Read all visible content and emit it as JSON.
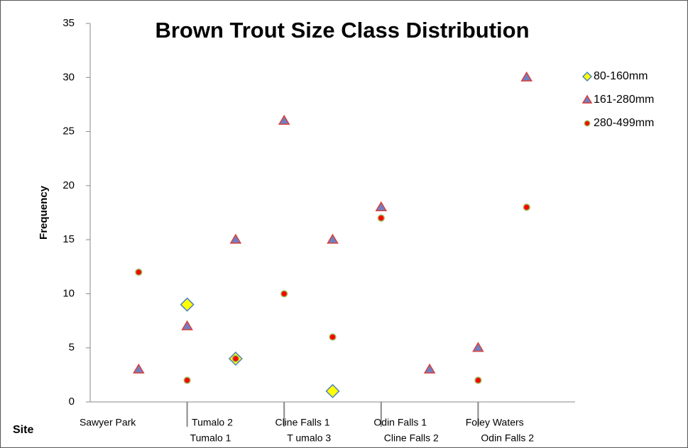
{
  "chart_data": {
    "type": "scatter",
    "title": "Brown Trout Size Class Distribution",
    "y_label": "Frequency",
    "x_label": "Site",
    "categories": [
      "Sawyer Park",
      "Tumalo  1",
      "Tumalo 2",
      "T umalo 3",
      "Cline Falls  1",
      "Cline Falls 2",
      "Odin Falls 1",
      "Odin Falls 2",
      "Foley Waters"
    ],
    "series": [
      {
        "name": "80-160mm",
        "color": "#ffff00",
        "edge": "#4f81bd",
        "marker": "diamond",
        "values": [
          null,
          9,
          4,
          null,
          1,
          null,
          null,
          null,
          null
        ]
      },
      {
        "name": "161-280mm",
        "color": "#6f7fc4",
        "edge": "#d9403a",
        "marker": "triangle",
        "values": [
          3,
          7,
          15,
          26,
          15,
          18,
          3,
          5,
          30
        ]
      },
      {
        "name": "280-499mm",
        "color": "#ff0000",
        "edge": "#9bbb59",
        "marker": "circle",
        "values": [
          12,
          2,
          4,
          10,
          6,
          17,
          null,
          2,
          18
        ]
      }
    ],
    "ylim": [
      0,
      35
    ],
    "yticks": [
      0,
      5,
      10,
      15,
      20,
      25,
      30,
      35
    ],
    "grid": false,
    "legend": "right"
  }
}
